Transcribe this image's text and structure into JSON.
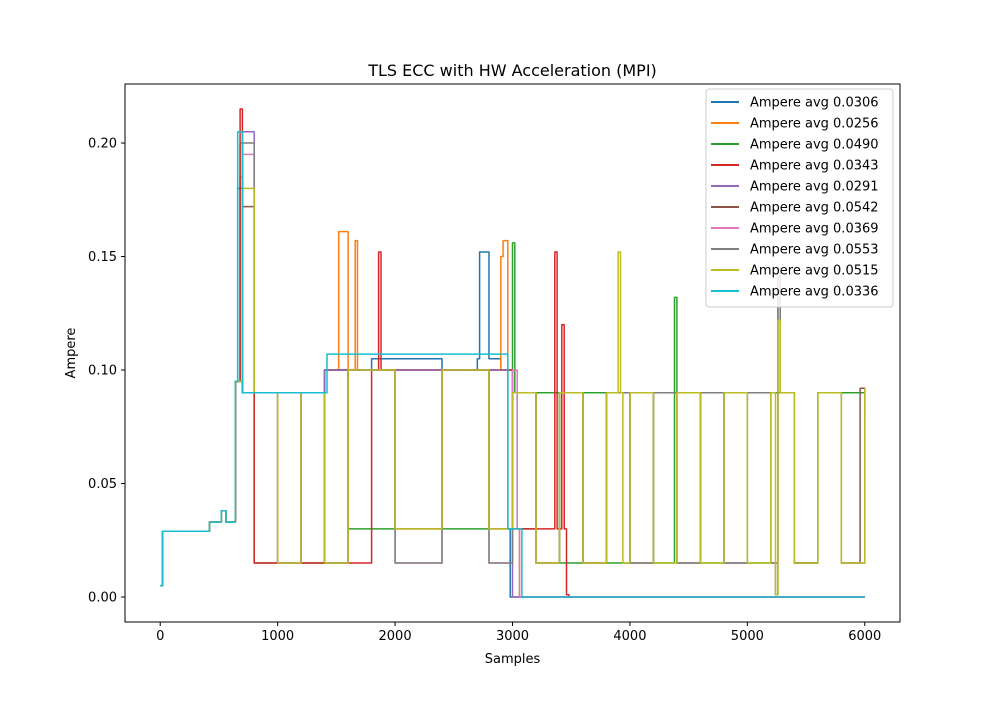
{
  "chart_data": {
    "type": "line",
    "title": "TLS ECC with HW Acceleration (MPI)",
    "xlabel": "Samples",
    "ylabel": "Ampere",
    "xlim": [
      -300,
      6300
    ],
    "ylim": [
      -0.011,
      0.226
    ],
    "xticks": [
      0,
      1000,
      2000,
      3000,
      4000,
      5000,
      6000
    ],
    "xtick_labels": [
      "0",
      "1000",
      "2000",
      "3000",
      "4000",
      "5000",
      "6000"
    ],
    "yticks": [
      0.0,
      0.05,
      0.1,
      0.15,
      0.2
    ],
    "ytick_labels": [
      "0.00",
      "0.05",
      "0.10",
      "0.15",
      "0.20"
    ],
    "grid": false,
    "legend_position": "upper right",
    "series": [
      {
        "name": "Ampere avg 0.0306",
        "color": "#1f77b4",
        "x": [
          0,
          20,
          40,
          100,
          300,
          420,
          520,
          560,
          640,
          660,
          700,
          800,
          1000,
          1200,
          1400,
          1600,
          1800,
          2000,
          2200,
          2400,
          2600,
          2700,
          2720,
          2800,
          2900,
          2960,
          2980,
          3000,
          3200,
          4000,
          5000,
          6000
        ],
        "y": [
          0.005,
          0.029,
          0.029,
          0.029,
          0.029,
          0.033,
          0.038,
          0.033,
          0.095,
          0.18,
          0.09,
          0.09,
          0.09,
          0.09,
          0.1,
          0.1,
          0.105,
          0.105,
          0.105,
          0.1,
          0.1,
          0.105,
          0.152,
          0.105,
          0.1,
          0.03,
          0.0,
          0.0,
          0.0,
          0.0,
          0.0,
          0.0
        ]
      },
      {
        "name": "Ampere avg 0.0256",
        "color": "#ff7f0e",
        "x": [
          0,
          20,
          100,
          300,
          420,
          520,
          560,
          640,
          680,
          700,
          800,
          1000,
          1200,
          1400,
          1500,
          1520,
          1600,
          1660,
          1680,
          1800,
          2000,
          2400,
          2800,
          2900,
          2920,
          2960,
          3000,
          3040,
          3060,
          4000,
          5000,
          6000
        ],
        "y": [
          0.005,
          0.029,
          0.029,
          0.029,
          0.033,
          0.038,
          0.033,
          0.095,
          0.185,
          0.09,
          0.09,
          0.09,
          0.09,
          0.1,
          0.1,
          0.161,
          0.1,
          0.157,
          0.1,
          0.1,
          0.1,
          0.1,
          0.1,
          0.15,
          0.157,
          0.1,
          0.03,
          0.03,
          0.0,
          0.0,
          0.0,
          0.0
        ]
      },
      {
        "name": "Ampere avg 0.0490",
        "color": "#2ca02c",
        "x": [
          0,
          20,
          100,
          300,
          420,
          520,
          560,
          640,
          680,
          700,
          800,
          1000,
          1200,
          1400,
          1600,
          2000,
          2400,
          2800,
          3000,
          3020,
          3040,
          3200,
          3400,
          3600,
          3800,
          4000,
          4200,
          4380,
          4400,
          4600,
          4800,
          5000,
          5200,
          5400,
          5600,
          5800,
          6000
        ],
        "y": [
          0.005,
          0.029,
          0.029,
          0.029,
          0.033,
          0.038,
          0.033,
          0.095,
          0.2,
          0.09,
          0.015,
          0.09,
          0.015,
          0.1,
          0.03,
          0.1,
          0.03,
          0.1,
          0.156,
          0.09,
          0.03,
          0.09,
          0.015,
          0.09,
          0.015,
          0.09,
          0.015,
          0.132,
          0.09,
          0.015,
          0.09,
          0.015,
          0.09,
          0.015,
          0.09,
          0.09,
          0.092
        ]
      },
      {
        "name": "Ampere avg 0.0343",
        "color": "#d62728",
        "x": [
          0,
          20,
          100,
          300,
          420,
          520,
          560,
          640,
          680,
          700,
          800,
          1000,
          1200,
          1400,
          1600,
          1800,
          1860,
          1880,
          2000,
          2400,
          2800,
          3000,
          3200,
          3360,
          3380,
          3420,
          3440,
          3460,
          3480,
          4000,
          5000,
          6000
        ],
        "y": [
          0.005,
          0.029,
          0.029,
          0.029,
          0.033,
          0.038,
          0.033,
          0.095,
          0.215,
          0.09,
          0.015,
          0.09,
          0.015,
          0.1,
          0.015,
          0.1,
          0.152,
          0.1,
          0.1,
          0.1,
          0.1,
          0.03,
          0.03,
          0.152,
          0.03,
          0.12,
          0.03,
          0.001,
          0.0,
          0.0,
          0.0,
          0.0
        ]
      },
      {
        "name": "Ampere avg 0.0291",
        "color": "#9467bd",
        "x": [
          0,
          20,
          100,
          300,
          420,
          520,
          560,
          640,
          700,
          800,
          1000,
          1200,
          1400,
          1600,
          2000,
          2400,
          2800,
          2960,
          3000,
          3040,
          4000,
          5000,
          6000
        ],
        "y": [
          0.005,
          0.029,
          0.029,
          0.029,
          0.033,
          0.038,
          0.033,
          0.095,
          0.205,
          0.09,
          0.09,
          0.09,
          0.1,
          0.1,
          0.1,
          0.1,
          0.1,
          0.03,
          0.0,
          0.0,
          0.0,
          0.0,
          0.0
        ]
      },
      {
        "name": "Ampere avg 0.0542",
        "color": "#8c564b",
        "x": [
          0,
          20,
          100,
          300,
          420,
          520,
          560,
          640,
          700,
          800,
          1000,
          1200,
          1400,
          1600,
          2000,
          2400,
          2800,
          3000,
          3200,
          3400,
          3600,
          3800,
          4000,
          4200,
          4400,
          4600,
          4800,
          5000,
          5200,
          5260,
          5280,
          5400,
          5600,
          5800,
          5960,
          5980,
          6000
        ],
        "y": [
          0.005,
          0.029,
          0.029,
          0.029,
          0.033,
          0.038,
          0.033,
          0.095,
          0.172,
          0.09,
          0.015,
          0.09,
          0.015,
          0.1,
          0.03,
          0.1,
          0.03,
          0.09,
          0.015,
          0.09,
          0.015,
          0.09,
          0.015,
          0.09,
          0.015,
          0.09,
          0.015,
          0.09,
          0.015,
          0.145,
          0.09,
          0.015,
          0.09,
          0.015,
          0.092,
          0.092,
          0.078
        ]
      },
      {
        "name": "Ampere avg 0.0369",
        "color": "#e377c2",
        "x": [
          0,
          20,
          100,
          300,
          420,
          520,
          560,
          640,
          700,
          800,
          1000,
          1200,
          1400,
          1600,
          2000,
          2400,
          2800,
          3000,
          3040,
          3060,
          3080,
          4000,
          5000,
          6000
        ],
        "y": [
          0.005,
          0.029,
          0.029,
          0.029,
          0.033,
          0.038,
          0.033,
          0.095,
          0.195,
          0.09,
          0.015,
          0.09,
          0.015,
          0.1,
          0.015,
          0.1,
          0.015,
          0.1,
          0.03,
          0.0,
          0.0,
          0.0,
          0.0,
          0.0
        ]
      },
      {
        "name": "Ampere avg 0.0553",
        "color": "#7f7f7f",
        "x": [
          0,
          20,
          100,
          300,
          420,
          520,
          560,
          640,
          700,
          800,
          1000,
          1200,
          1400,
          1600,
          2000,
          2400,
          2800,
          3000,
          3200,
          3400,
          3600,
          3800,
          4000,
          4200,
          4400,
          4600,
          4800,
          5000,
          5200,
          5240,
          5260,
          5280,
          5400,
          5600,
          5800,
          6000
        ],
        "y": [
          0.005,
          0.029,
          0.029,
          0.029,
          0.033,
          0.038,
          0.033,
          0.095,
          0.2,
          0.09,
          0.015,
          0.09,
          0.015,
          0.1,
          0.015,
          0.1,
          0.015,
          0.09,
          0.015,
          0.09,
          0.015,
          0.09,
          0.015,
          0.09,
          0.015,
          0.09,
          0.015,
          0.09,
          0.015,
          0.001,
          0.135,
          0.09,
          0.015,
          0.09,
          0.015,
          0.092
        ]
      },
      {
        "name": "Ampere avg 0.0515",
        "color": "#bcbd22",
        "x": [
          0,
          20,
          100,
          300,
          420,
          520,
          560,
          640,
          700,
          800,
          1000,
          1200,
          1400,
          1600,
          2000,
          2400,
          2800,
          3000,
          3200,
          3400,
          3600,
          3800,
          3900,
          3920,
          3940,
          4000,
          4200,
          4400,
          4600,
          4800,
          5000,
          5200,
          5240,
          5260,
          5280,
          5400,
          5600,
          5800,
          6000
        ],
        "y": [
          0.005,
          0.029,
          0.029,
          0.029,
          0.033,
          0.038,
          0.033,
          0.095,
          0.18,
          0.09,
          0.015,
          0.09,
          0.015,
          0.1,
          0.03,
          0.1,
          0.03,
          0.09,
          0.015,
          0.09,
          0.015,
          0.09,
          0.152,
          0.09,
          0.015,
          0.09,
          0.015,
          0.09,
          0.015,
          0.09,
          0.015,
          0.09,
          0.001,
          0.122,
          0.09,
          0.015,
          0.09,
          0.015,
          0.092
        ]
      },
      {
        "name": "Ampere avg 0.0336",
        "color": "#17becf",
        "x": [
          0,
          20,
          100,
          300,
          420,
          520,
          560,
          640,
          660,
          700,
          800,
          1000,
          1200,
          1400,
          1420,
          1600,
          2000,
          2200,
          2400,
          2600,
          2800,
          2960,
          3000,
          3040,
          3080,
          3100,
          4000,
          5000,
          6000
        ],
        "y": [
          0.005,
          0.029,
          0.029,
          0.029,
          0.033,
          0.038,
          0.033,
          0.095,
          0.205,
          0.09,
          0.09,
          0.09,
          0.09,
          0.09,
          0.107,
          0.107,
          0.107,
          0.107,
          0.107,
          0.107,
          0.107,
          0.03,
          0.03,
          0.03,
          0.0,
          0.0,
          0.0,
          0.0,
          0.0
        ]
      }
    ]
  }
}
